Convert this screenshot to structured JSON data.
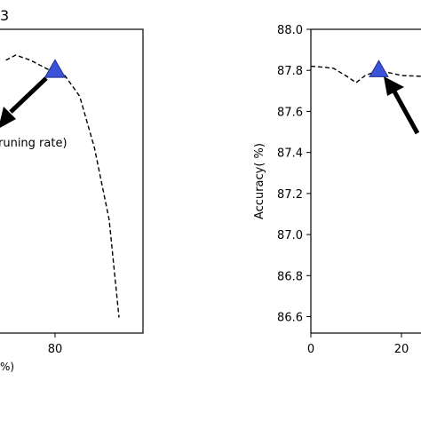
{
  "chart_data": [
    {
      "type": "line",
      "panel": "left (cropped)",
      "title_fragment": "3",
      "xlabel_fragment": "%)",
      "x_ticks": [
        80
      ],
      "xlim": [
        70,
        95
      ],
      "ylim": [
        87.34,
        87.93
      ],
      "line_style": "dashed",
      "line_color": "#000000",
      "series": [
        {
          "x": [
            70,
            72,
            75,
            78,
            80,
            82,
            85,
            88,
            91,
            93
          ],
          "y": [
            87.87,
            87.88,
            87.87,
            87.855,
            87.845,
            87.84,
            87.8,
            87.7,
            87.56,
            87.37
          ]
        }
      ],
      "marker": {
        "x": 80,
        "y": 87.85,
        "shape": "triangle",
        "color": "#3a53d9"
      },
      "annotation": {
        "text": "runing rate)",
        "arrow": "points to marker"
      }
    },
    {
      "type": "line",
      "panel": "right (cropped)",
      "xlabel": "",
      "ylabel": "Accuracy( %)",
      "x_ticks": [
        0,
        20
      ],
      "y_ticks": [
        "86.6",
        "86.8",
        "87.0",
        "87.2",
        "87.4",
        "87.6",
        "87.8",
        "88.0"
      ],
      "ylim": [
        86.52,
        88.0
      ],
      "xlim": [
        0,
        26
      ],
      "line_style": "dashed",
      "line_color": "#000000",
      "series": [
        {
          "x": [
            0,
            3,
            5,
            8,
            10,
            12,
            15,
            18,
            20,
            23,
            26
          ],
          "y": [
            87.82,
            87.815,
            87.81,
            87.77,
            87.74,
            87.775,
            87.8,
            87.785,
            87.775,
            87.772,
            87.77
          ]
        }
      ],
      "marker": {
        "x": 15,
        "y": 87.8,
        "shape": "triangle",
        "color": "#3a53d9"
      },
      "annotation": {
        "text": "",
        "arrow": "points to marker"
      }
    }
  ]
}
